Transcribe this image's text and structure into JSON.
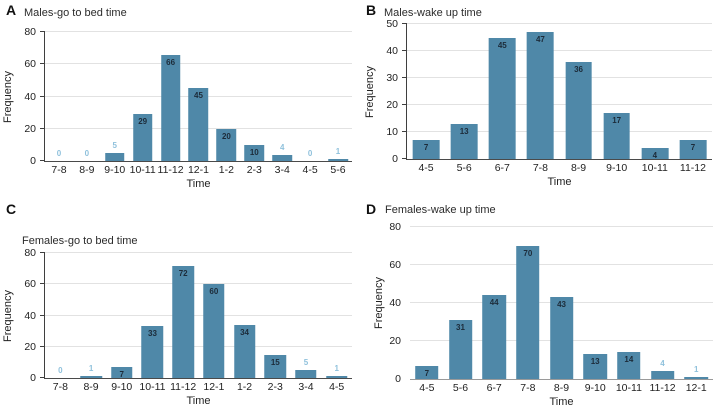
{
  "figure": {
    "background": "#ffffff",
    "bar_color": "#4f88a8",
    "value_label_inside_color": "#1c2b39",
    "value_label_outside_color": "#8fc1dc",
    "grid_color": "#e2e2e2",
    "axis_color": "#3f3f3f"
  },
  "chart_data": [
    {
      "type": "bar",
      "panel": "A",
      "title": "Males-go to bed time",
      "xlabel": "Time",
      "ylabel": "Frequency",
      "ylim": [
        0,
        80
      ],
      "yticks": [
        0,
        20,
        40,
        60,
        80
      ],
      "grid": true,
      "legend": false,
      "categories": [
        "7-8",
        "8-9",
        "9-10",
        "10-11",
        "11-12",
        "12-1",
        "1-2",
        "2-3",
        "3-4",
        "4-5",
        "5-6"
      ],
      "values": [
        0,
        0,
        5,
        29,
        66,
        45,
        20,
        10,
        4,
        0,
        1
      ],
      "label_outside": [
        true,
        true,
        true,
        false,
        false,
        false,
        false,
        false,
        true,
        true,
        true
      ],
      "axis": {
        "line": true,
        "ticks": true
      }
    },
    {
      "type": "bar",
      "panel": "B",
      "title": "Males-wake up time",
      "xlabel": "Time",
      "ylabel": "Frequency",
      "ylim": [
        0,
        50
      ],
      "yticks": [
        0,
        10,
        20,
        30,
        40,
        50
      ],
      "grid": true,
      "legend": false,
      "categories": [
        "4-5",
        "5-6",
        "6-7",
        "7-8",
        "8-9",
        "9-10",
        "10-11",
        "11-12"
      ],
      "values": [
        7,
        13,
        45,
        47,
        36,
        17,
        4,
        7
      ],
      "label_outside": [
        false,
        false,
        false,
        false,
        false,
        false,
        false,
        false
      ],
      "axis": {
        "line": true,
        "ticks": true
      }
    },
    {
      "type": "bar",
      "panel": "C",
      "title": "Females-go to bed time",
      "xlabel": "Time",
      "ylabel": "Frequency",
      "ylim": [
        0,
        80
      ],
      "yticks": [
        0,
        20,
        40,
        60,
        80
      ],
      "grid": true,
      "legend": false,
      "categories": [
        "7-8",
        "8-9",
        "9-10",
        "10-11",
        "11-12",
        "12-1",
        "1-2",
        "2-3",
        "3-4",
        "4-5"
      ],
      "values": [
        0,
        1,
        7,
        33,
        72,
        60,
        34,
        15,
        5,
        1
      ],
      "label_outside": [
        true,
        true,
        false,
        false,
        false,
        false,
        false,
        false,
        true,
        true
      ],
      "axis": {
        "line": true,
        "ticks": true
      }
    },
    {
      "type": "bar",
      "panel": "D",
      "title": "Females-wake up time",
      "xlabel": "Time",
      "ylabel": "Frequency",
      "ylim": [
        0,
        80
      ],
      "yticks": [
        0,
        20,
        40,
        60,
        80
      ],
      "grid": true,
      "legend": false,
      "categories": [
        "4-5",
        "5-6",
        "6-7",
        "7-8",
        "8-9",
        "9-10",
        "10-11",
        "11-12",
        "12-1"
      ],
      "values": [
        7,
        31,
        44,
        70,
        43,
        13,
        14,
        4,
        1
      ],
      "label_outside": [
        false,
        false,
        false,
        false,
        false,
        false,
        false,
        true,
        true
      ],
      "axis": {
        "line": false,
        "ticks": false
      }
    }
  ]
}
